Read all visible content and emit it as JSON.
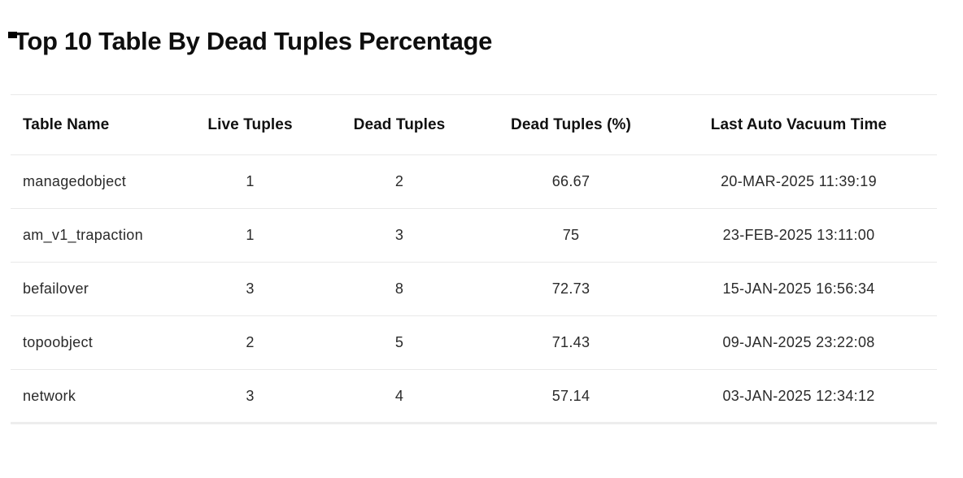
{
  "title": "Top 10 Table By Dead Tuples Percentage",
  "table": {
    "columns": [
      "Table Name",
      "Live Tuples",
      "Dead Tuples",
      "Dead Tuples (%)",
      "Last Auto Vacuum Time"
    ],
    "rows": [
      [
        "managedobject",
        "1",
        "2",
        "66.67",
        "20-MAR-2025 11:39:19"
      ],
      [
        "am_v1_trapaction",
        "1",
        "3",
        "75",
        "23-FEB-2025 13:11:00"
      ],
      [
        "befailover",
        "3",
        "8",
        "72.73",
        "15-JAN-2025 16:56:34"
      ],
      [
        "topoobject",
        "2",
        "5",
        "71.43",
        "09-JAN-2025 23:22:08"
      ],
      [
        "network",
        "3",
        "4",
        "57.14",
        "03-JAN-2025 12:34:12"
      ]
    ]
  },
  "colors": {
    "background": "#ffffff",
    "title_text": "#0e0e0e",
    "header_text": "#101010",
    "cell_text": "#2a2a2a",
    "divider": "#e9e9e9",
    "bottom_border": "#ededed",
    "top_left_mark": "#000000"
  }
}
